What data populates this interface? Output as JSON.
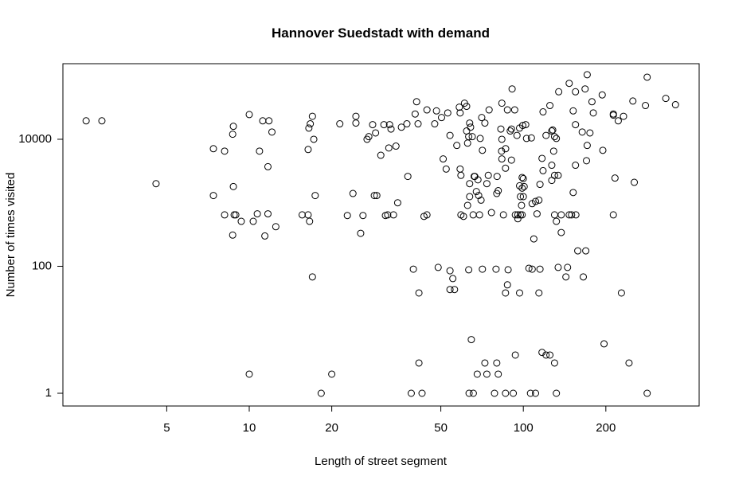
{
  "chart_data": {
    "type": "scatter",
    "title": "Hannover Suedstadt with demand",
    "x_label": "Length of street segment",
    "y_label": "Number of times visited",
    "x_log": true,
    "y_log": true,
    "color": "#000000",
    "xlim": [
      2.09,
      438
    ],
    "ylim": [
      0.63,
      155000
    ],
    "xticks": [
      5,
      10,
      20,
      50,
      100,
      200
    ],
    "yticks": [
      1,
      100,
      10000
    ],
    "x": [
      2.54,
      2.9,
      4.57,
      7.4,
      8.13,
      8.7,
      8.75,
      10,
      11.2,
      11.8,
      12.1,
      10.9,
      11.7,
      7.4,
      8.75,
      8.13,
      8.81,
      8.93,
      9.35,
      8.7,
      10.34,
      10.7,
      11.7,
      12.5,
      11.4,
      10,
      17,
      17,
      16.7,
      16.5,
      17.2,
      16.4,
      17.4,
      15.6,
      16.4,
      16.6,
      20,
      18.3,
      21.4,
      24.5,
      24.5,
      23.9,
      22.8,
      26,
      25.5,
      26.9,
      28.2,
      27.3,
      28.9,
      30.2,
      31,
      32.5,
      32.9,
      34.3,
      32.3,
      35.9,
      37.6,
      28.6,
      29.2,
      31.4,
      32,
      33.6,
      34.8,
      37.9,
      39.7,
      40.3,
      40.8,
      41.3,
      44.5,
      48.2,
      47.5,
      50.3,
      53,
      54,
      51,
      52.3,
      48.9,
      54,
      55.3,
      54,
      56.1,
      44.5,
      43.4,
      41.6,
      41.6,
      42.7,
      39,
      57.2,
      58.8,
      59.2,
      59.2,
      60.5,
      61,
      62.6,
      63.7,
      62.1,
      63.2,
      58.4,
      58.8,
      62.1,
      64.2,
      65.1,
      70.5,
      72.4,
      75,
      70.9,
      69.6,
      66.5,
      68.3,
      66.2,
      67.4,
      68.7,
      70.1,
      63.7,
      63.7,
      62.6,
      65.6,
      69.2,
      63.2,
      70.9,
      79.5,
      73.6,
      74.5,
      81,
      80,
      80.2,
      76.5,
      84.6,
      83.5,
      83.5,
      82.8,
      83.3,
      86.1,
      86.2,
      90.5,
      89.6,
      87.5,
      83.5,
      90.5,
      91,
      93,
      96.9,
      99.5,
      94.8,
      99,
      99,
      100,
      100.7,
      96.9,
      97.6,
      95.5,
      93.5,
      97.6,
      95.5,
      87.5,
      88,
      86.1,
      86.1,
      91.9,
      96.9,
      93.5,
      102,
      102.7,
      107,
      104.8,
      107.7,
      109.2,
      107.7,
      110.8,
      114,
      112.2,
      115,
      117,
      118,
      118,
      121,
      125,
      127,
      128,
      130,
      129,
      127,
      127,
      130,
      132,
      134,
      137.5,
      137.5,
      130,
      132,
      143,
      145,
      147,
      132,
      121,
      130,
      106.2,
      110.8,
      134.6,
      147,
      155,
      152,
      155,
      168,
      171,
      171,
      178,
      180,
      175,
      170,
      164,
      155,
      152,
      155.5,
      158,
      169,
      165.5,
      194,
      195,
      213,
      213,
      216,
      222,
      228,
      232,
      243,
      254,
      251,
      279,
      283,
      283,
      331,
      359,
      197,
      213,
      134,
      125,
      78.5,
      80,
      81,
      72.4,
      73.6,
      65.7,
      63.4,
      67.9,
      64.6,
      117,
      114,
      115,
      150,
      98.5,
      100,
      99
    ],
    "y": [
      19500,
      19500,
      2000,
      7100,
      6500,
      12000,
      16000,
      24500,
      19500,
      19500,
      13000,
      6500,
      3700,
      1300,
      1800,
      645,
      645,
      645,
      510,
      310,
      510,
      670,
      670,
      420,
      300,
      2,
      68,
      23000,
      17500,
      15000,
      10000,
      6900,
      1300,
      645,
      645,
      510,
      2,
      1,
      17500,
      23000,
      18000,
      1400,
      630,
      630,
      330,
      10000,
      17000,
      11000,
      12600,
      5600,
      17000,
      17000,
      14500,
      7800,
      7300,
      15500,
      17500,
      1300,
      1300,
      630,
      645,
      645,
      1000,
      2600,
      90,
      25000,
      39000,
      17500,
      29000,
      28000,
      17500,
      22000,
      26000,
      11500,
      4900,
      3400,
      96,
      85,
      64,
      43,
      43,
      645,
      610,
      3,
      38,
      1,
      1,
      8000,
      3400,
      2700,
      645,
      610,
      37000,
      8700,
      18000,
      13500,
      11000,
      32000,
      26000,
      33000,
      15500,
      11000,
      22000,
      18000,
      29000,
      6700,
      10300,
      2600,
      2300,
      2600,
      1500,
      1300,
      1100,
      1250,
      2000,
      910,
      645,
      645,
      88,
      90,
      90,
      2000,
      2700,
      1550,
      1400,
      2600,
      700,
      645,
      4900,
      10000,
      14500,
      6500,
      3500,
      7100,
      4700,
      13500,
      29000,
      37000,
      14500,
      62000,
      29000,
      15000,
      16500,
      11500,
      1700,
      2500,
      2400,
      1800,
      1850,
      1250,
      645,
      645,
      645,
      560,
      51,
      88,
      38,
      1,
      1,
      38,
      4,
      17000,
      10300,
      10500,
      93,
      90,
      270,
      970,
      1050,
      1100,
      670,
      1950,
      5000,
      3200,
      27000,
      11500,
      34000,
      13500,
      14000,
      11000,
      6500,
      3900,
      2250,
      2700,
      10300,
      2700,
      340,
      645,
      645,
      510,
      68,
      96,
      645,
      1,
      4,
      3,
      1,
      1,
      56000,
      76000,
      56000,
      28000,
      17000,
      62000,
      104000,
      8000,
      39000,
      26000,
      12600,
      4600,
      13000,
      3900,
      1450,
      645,
      175,
      175,
      68,
      50000,
      6700,
      25000,
      24000,
      2450,
      19500,
      38,
      23000,
      3,
      2100,
      40000,
      34000,
      95000,
      1,
      44000,
      35000,
      6,
      645,
      96,
      4,
      1,
      3,
      2,
      3,
      2,
      1,
      1,
      2,
      7,
      4.4,
      38,
      90,
      645,
      910,
      1250,
      645
    ]
  }
}
